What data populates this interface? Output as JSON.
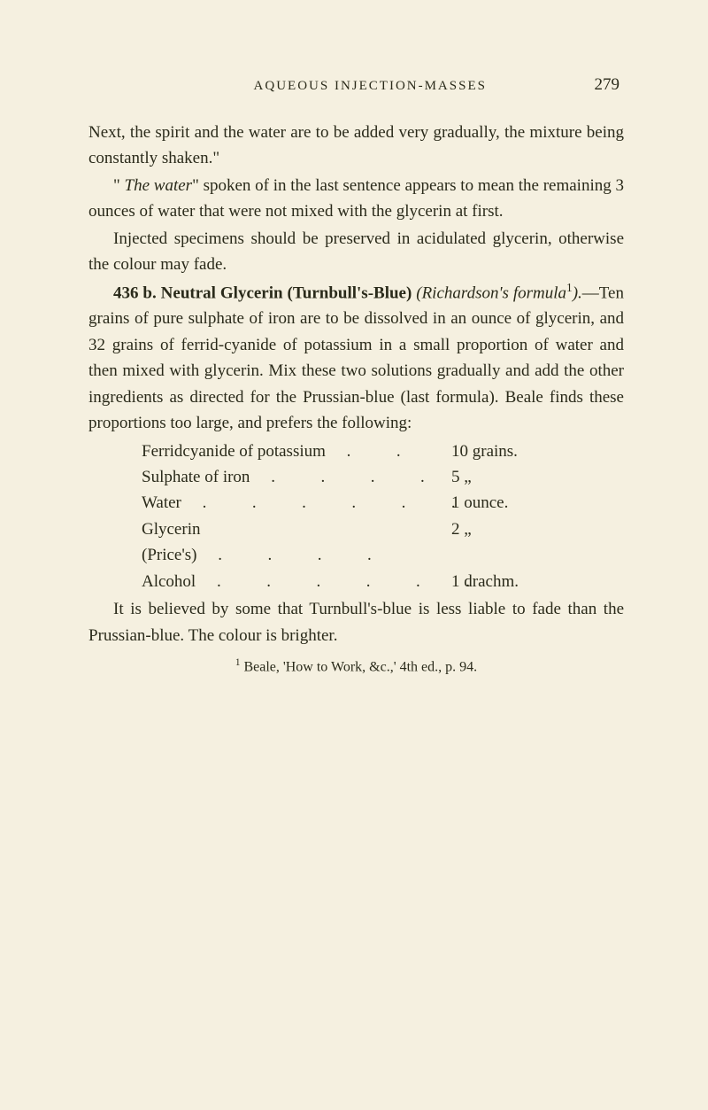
{
  "header": {
    "running_head": "AQUEOUS INJECTION-MASSES",
    "page_number": "279"
  },
  "paragraphs": {
    "p1": "Next, the spirit and the water are to be added very gradually, the mixture being constantly shaken.\"",
    "p2_prefix": "\" ",
    "p2_italic": "The water",
    "p2_rest": "\" spoken of in the last sentence appears to mean the remaining 3 ounces of water that were not mixed with the glycerin at first.",
    "p3": "Injected specimens should be preserved in acidulated glycerin, otherwise the colour may fade.",
    "p4_bold": "436 b. Neutral Glycerin (Turnbull's-Blue)",
    "p4_italic_open": " (Richardson's formula",
    "p4_sup": "1",
    "p4_italic_close": ").",
    "p4_rest": "—Ten grains of pure sulphate of iron are to be dissolved in an ounce of glycerin, and 32 grains of ferrid-cyanide of potassium in a small proportion of water and then mixed with glycerin. Mix these two solutions gradually and add the other ingredients as directed for the Prussian-blue (last formula). Beale finds these proportions too large, and prefers the following:",
    "p5": "It is believed by some that Turnbull's-blue is less liable to fade than the Prussian-blue. The colour is brighter."
  },
  "table": {
    "rows": [
      {
        "name": "Ferridcyanide of potassium",
        "dots": ".  .",
        "amount": "10 grains."
      },
      {
        "name": "Sulphate of iron",
        "dots": ".  .  .  .",
        "amount": "5    „"
      },
      {
        "name": "Water",
        "dots": ".  .  .  .  .  .",
        "amount": "1 ounce."
      },
      {
        "name": "Glycerin (Price's)",
        "dots": ".  .  .  .",
        "amount": "2    „"
      },
      {
        "name": "Alcohol",
        "dots": ".  .  .  .  .  .",
        "amount": "1 drachm."
      }
    ]
  },
  "footnote": {
    "marker": "1",
    "text": " Beale, 'How to Work, &c.,' 4th ed., p. 94."
  }
}
